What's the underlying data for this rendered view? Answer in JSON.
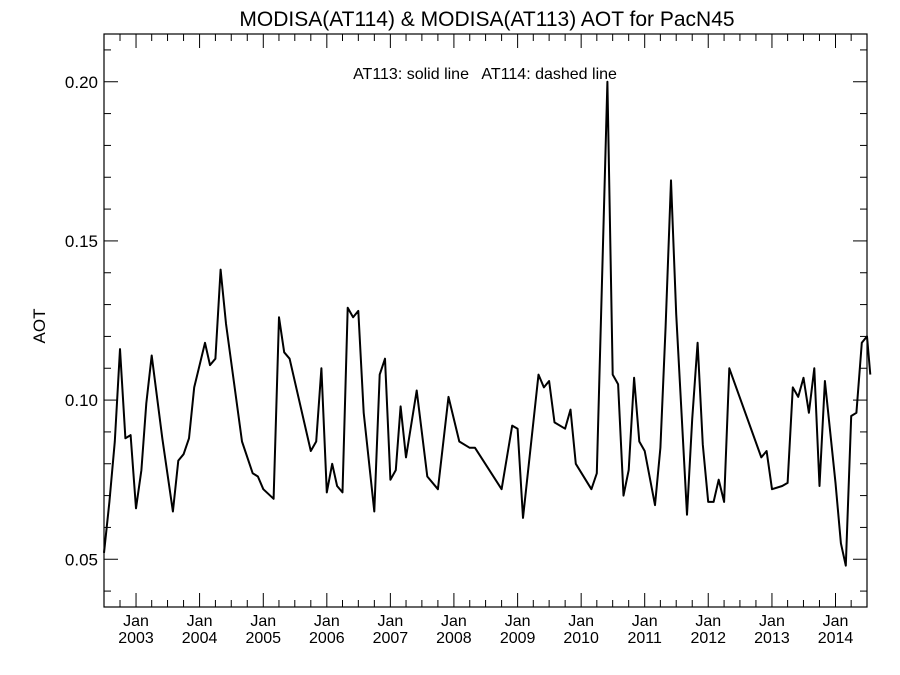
{
  "chart_data": {
    "type": "line",
    "title": "MODISA(AT114) & MODISA(AT113)  AOT for PacN45",
    "annotation": "AT113: solid line   AT114: dashed line",
    "ylabel": "AOT",
    "xlabel": "",
    "xlim": [
      "2002-07-01",
      "2014-07-01"
    ],
    "ylim": [
      0.035,
      0.215
    ],
    "yticks": [
      0.05,
      0.1,
      0.15,
      0.2
    ],
    "ytick_labels": [
      "0.05",
      "0.10",
      "0.15",
      "0.20"
    ],
    "xticks": [
      "2003-01-01",
      "2004-01-01",
      "2005-01-01",
      "2006-01-01",
      "2007-01-01",
      "2008-01-01",
      "2009-01-01",
      "2010-01-01",
      "2011-01-01",
      "2012-01-01",
      "2013-01-01",
      "2014-01-01"
    ],
    "xtick_month_label": "Jan",
    "xtick_year_labels": [
      "2003",
      "2004",
      "2005",
      "2006",
      "2007",
      "2008",
      "2009",
      "2010",
      "2011",
      "2012",
      "2013",
      "2014"
    ],
    "grid": false,
    "series": [
      {
        "style": "solid",
        "color": "#000000",
        "points": [
          [
            "2002-07-01",
            0.052
          ],
          [
            "2002-08-01",
            0.068
          ],
          [
            "2002-09-01",
            0.087
          ],
          [
            "2002-10-01",
            0.116
          ],
          [
            "2002-11-01",
            0.088
          ],
          [
            "2002-12-01",
            0.089
          ],
          [
            "2003-01-01",
            0.066
          ],
          [
            "2003-02-01",
            0.078
          ],
          [
            "2003-03-01",
            0.099
          ],
          [
            "2003-04-01",
            0.114
          ],
          [
            "2003-06-01",
            0.088
          ],
          [
            "2003-08-01",
            0.065
          ],
          [
            "2003-09-01",
            0.081
          ],
          [
            "2003-10-01",
            0.083
          ],
          [
            "2003-11-01",
            0.088
          ],
          [
            "2003-12-01",
            0.104
          ],
          [
            "2004-02-01",
            0.118
          ],
          [
            "2004-03-01",
            0.111
          ],
          [
            "2004-04-01",
            0.113
          ],
          [
            "2004-05-01",
            0.141
          ],
          [
            "2004-06-01",
            0.124
          ],
          [
            "2004-09-01",
            0.087
          ],
          [
            "2004-11-01",
            0.077
          ],
          [
            "2004-12-01",
            0.076
          ],
          [
            "2005-01-01",
            0.072
          ],
          [
            "2005-03-01",
            0.069
          ],
          [
            "2005-04-01",
            0.126
          ],
          [
            "2005-05-01",
            0.115
          ],
          [
            "2005-06-01",
            0.113
          ],
          [
            "2005-10-01",
            0.084
          ],
          [
            "2005-11-01",
            0.087
          ],
          [
            "2005-12-01",
            0.11
          ],
          [
            "2006-01-01",
            0.071
          ],
          [
            "2006-02-01",
            0.08
          ],
          [
            "2006-03-01",
            0.073
          ],
          [
            "2006-04-01",
            0.071
          ],
          [
            "2006-05-01",
            0.129
          ],
          [
            "2006-06-01",
            0.126
          ],
          [
            "2006-07-01",
            0.128
          ],
          [
            "2006-08-01",
            0.096
          ],
          [
            "2006-10-01",
            0.065
          ],
          [
            "2006-11-01",
            0.108
          ],
          [
            "2006-12-01",
            0.113
          ],
          [
            "2007-01-01",
            0.075
          ],
          [
            "2007-02-01",
            0.078
          ],
          [
            "2007-03-01",
            0.098
          ],
          [
            "2007-04-01",
            0.082
          ],
          [
            "2007-06-01",
            0.103
          ],
          [
            "2007-08-01",
            0.076
          ],
          [
            "2007-10-01",
            0.072
          ],
          [
            "2007-12-01",
            0.101
          ],
          [
            "2008-02-01",
            0.087
          ],
          [
            "2008-04-01",
            0.085
          ],
          [
            "2008-05-01",
            0.085
          ],
          [
            "2008-10-01",
            0.072
          ],
          [
            "2008-12-01",
            0.092
          ],
          [
            "2009-01-01",
            0.091
          ],
          [
            "2009-02-01",
            0.063
          ],
          [
            "2009-05-01",
            0.108
          ],
          [
            "2009-06-01",
            0.104
          ],
          [
            "2009-07-01",
            0.106
          ],
          [
            "2009-08-01",
            0.093
          ],
          [
            "2009-10-01",
            0.091
          ],
          [
            "2009-11-01",
            0.097
          ],
          [
            "2009-12-01",
            0.08
          ],
          [
            "2010-03-01",
            0.072
          ],
          [
            "2010-04-01",
            0.077
          ],
          [
            "2010-06-01",
            0.2
          ],
          [
            "2010-07-01",
            0.108
          ],
          [
            "2010-08-01",
            0.105
          ],
          [
            "2010-09-01",
            0.07
          ],
          [
            "2010-10-01",
            0.078
          ],
          [
            "2010-11-01",
            0.107
          ],
          [
            "2010-12-01",
            0.087
          ],
          [
            "2011-01-01",
            0.084
          ],
          [
            "2011-03-01",
            0.067
          ],
          [
            "2011-04-01",
            0.085
          ],
          [
            "2011-05-01",
            0.123
          ],
          [
            "2011-06-01",
            0.169
          ],
          [
            "2011-07-01",
            0.127
          ],
          [
            "2011-09-01",
            0.064
          ],
          [
            "2011-10-01",
            0.094
          ],
          [
            "2011-11-01",
            0.118
          ],
          [
            "2011-12-01",
            0.086
          ],
          [
            "2012-01-01",
            0.068
          ],
          [
            "2012-02-01",
            0.068
          ],
          [
            "2012-03-01",
            0.075
          ],
          [
            "2012-04-01",
            0.068
          ],
          [
            "2012-05-01",
            0.11
          ],
          [
            "2012-11-01",
            0.082
          ],
          [
            "2012-12-01",
            0.084
          ],
          [
            "2013-01-01",
            0.072
          ],
          [
            "2013-03-01",
            0.073
          ],
          [
            "2013-04-01",
            0.074
          ],
          [
            "2013-05-01",
            0.104
          ],
          [
            "2013-06-01",
            0.101
          ],
          [
            "2013-07-01",
            0.107
          ],
          [
            "2013-08-01",
            0.096
          ],
          [
            "2013-09-01",
            0.11
          ],
          [
            "2013-10-01",
            0.073
          ],
          [
            "2013-11-01",
            0.106
          ],
          [
            "2014-01-01",
            0.074
          ],
          [
            "2014-02-01",
            0.055
          ],
          [
            "2014-03-01",
            0.048
          ],
          [
            "2014-04-01",
            0.095
          ],
          [
            "2014-05-01",
            0.096
          ],
          [
            "2014-06-01",
            0.118
          ],
          [
            "2014-07-01",
            0.12
          ],
          [
            "2014-07-20",
            0.108
          ]
        ]
      }
    ]
  }
}
